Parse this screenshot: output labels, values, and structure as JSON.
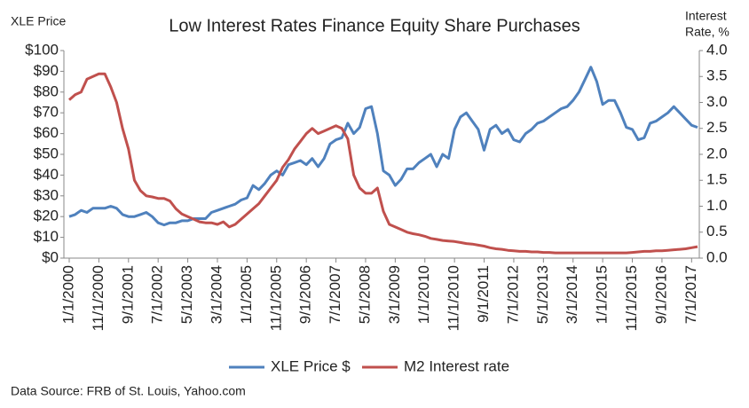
{
  "chart_data": {
    "type": "line",
    "title": "Low Interest Rates Finance Equity Share Purchases",
    "y_label": "XLE Price",
    "y2_label": [
      "Interest",
      "Rate, %"
    ],
    "source": "Data Source: FRB of St. Louis, Yahoo.com",
    "categories": [
      "1/1/2000",
      null,
      null,
      null,
      null,
      "11/1/2000",
      null,
      null,
      null,
      null,
      "9/1/2001",
      null,
      null,
      null,
      null,
      "7/1/2002",
      null,
      null,
      null,
      null,
      "5/1/2003",
      null,
      null,
      null,
      null,
      "3/1/2004",
      null,
      null,
      null,
      null,
      "1/1/2005",
      null,
      null,
      null,
      null,
      "11/1/2005",
      null,
      null,
      null,
      null,
      "9/1/2006",
      null,
      null,
      null,
      null,
      "7/1/2007",
      null,
      null,
      null,
      null,
      "5/1/2008",
      null,
      null,
      null,
      null,
      "3/1/2009",
      null,
      null,
      null,
      null,
      "1/1/2010",
      null,
      null,
      null,
      null,
      "11/1/2010",
      null,
      null,
      null,
      null,
      "9/1/2011",
      null,
      null,
      null,
      null,
      "7/1/2012",
      null,
      null,
      null,
      null,
      "5/1/2013",
      null,
      null,
      null,
      null,
      "3/1/2014",
      null,
      null,
      null,
      null,
      "1/1/2015",
      null,
      null,
      null,
      null,
      "11/1/2015",
      null,
      null,
      null,
      null,
      "9/1/2016",
      null,
      null,
      null,
      null,
      "7/1/2017",
      null
    ],
    "series": [
      {
        "name": "XLE Price $",
        "color": "#4f81bd",
        "axis": "y",
        "values": [
          20,
          21,
          23,
          22,
          24,
          24,
          24,
          25,
          24,
          21,
          20,
          20,
          21,
          22,
          20,
          17,
          16,
          17,
          17,
          18,
          18,
          19,
          19,
          19,
          22,
          23,
          24,
          25,
          26,
          28,
          29,
          35,
          33,
          36,
          40,
          42,
          40,
          45,
          46,
          47,
          45,
          48,
          44,
          48,
          55,
          57,
          58,
          65,
          60,
          63,
          72,
          73,
          60,
          42,
          40,
          35,
          38,
          43,
          43,
          46,
          48,
          50,
          44,
          50,
          48,
          62,
          68,
          70,
          66,
          62,
          52,
          62,
          64,
          60,
          62,
          57,
          56,
          60,
          62,
          65,
          66,
          68,
          70,
          72,
          73,
          76,
          80,
          86,
          92,
          85,
          74,
          76,
          76,
          70,
          63,
          62,
          57,
          58,
          65,
          66,
          68,
          70,
          73,
          70,
          67,
          64,
          63
        ]
      },
      {
        "name": "M2 Interest rate",
        "color": "#c0504d",
        "axis": "y2",
        "values": [
          3.05,
          3.15,
          3.2,
          3.45,
          3.5,
          3.55,
          3.55,
          3.3,
          3.0,
          2.5,
          2.1,
          1.5,
          1.3,
          1.2,
          1.18,
          1.15,
          1.15,
          1.1,
          0.95,
          0.85,
          0.8,
          0.75,
          0.7,
          0.68,
          0.68,
          0.65,
          0.7,
          0.6,
          0.65,
          0.75,
          0.85,
          0.95,
          1.05,
          1.2,
          1.35,
          1.5,
          1.75,
          1.9,
          2.1,
          2.25,
          2.4,
          2.5,
          2.4,
          2.45,
          2.5,
          2.55,
          2.5,
          2.3,
          1.6,
          1.35,
          1.25,
          1.25,
          1.35,
          0.9,
          0.65,
          0.6,
          0.55,
          0.5,
          0.47,
          0.45,
          0.42,
          0.38,
          0.36,
          0.34,
          0.33,
          0.32,
          0.3,
          0.28,
          0.27,
          0.25,
          0.23,
          0.2,
          0.18,
          0.17,
          0.15,
          0.14,
          0.13,
          0.13,
          0.12,
          0.12,
          0.11,
          0.11,
          0.1,
          0.1,
          0.1,
          0.1,
          0.1,
          0.1,
          0.1,
          0.1,
          0.1,
          0.1,
          0.1,
          0.1,
          0.1,
          0.11,
          0.12,
          0.13,
          0.13,
          0.14,
          0.14,
          0.15,
          0.16,
          0.17,
          0.18,
          0.2,
          0.22
        ]
      }
    ],
    "ylim": [
      0,
      100
    ],
    "yticks": [
      {
        "value": 0,
        "label": "$0"
      },
      {
        "value": 10,
        "label": "$10"
      },
      {
        "value": 20,
        "label": "$20"
      },
      {
        "value": 30,
        "label": "$30"
      },
      {
        "value": 40,
        "label": "$40"
      },
      {
        "value": 50,
        "label": "$50"
      },
      {
        "value": 60,
        "label": "$60"
      },
      {
        "value": 70,
        "label": "$70"
      },
      {
        "value": 80,
        "label": "$80"
      },
      {
        "value": 90,
        "label": "$90"
      },
      {
        "value": 100,
        "label": "$100"
      }
    ],
    "y2lim": [
      0,
      4
    ],
    "y2ticks": [
      {
        "value": 0,
        "label": "0.0"
      },
      0.5,
      {
        "value": 1,
        "label": "1.0"
      },
      1.5,
      {
        "value": 2,
        "label": "2.0"
      },
      2.5,
      {
        "value": 3,
        "label": "3.0"
      },
      3.5,
      {
        "value": 4,
        "label": "4.0"
      }
    ],
    "grid": false,
    "legend": "bottom"
  }
}
